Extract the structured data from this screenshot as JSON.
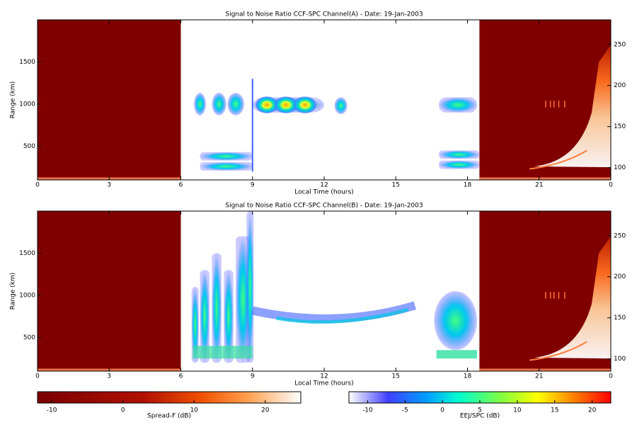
{
  "chart_data": [
    {
      "type": "heatmap",
      "title": "Signal to Noise Ratio CCF-SPC Channel(A) - Date: 19-Jan-2003",
      "xlabel": "Local Time (hours)",
      "ylabel": "Range (km)",
      "xlim": [
        0,
        24
      ],
      "xticks": [
        0,
        3,
        6,
        9,
        12,
        15,
        18,
        21,
        {
          "value": 24,
          "label": "0"
        }
      ],
      "ylim": [
        100,
        2000
      ],
      "yticks": [
        500,
        1000,
        1500
      ],
      "y2lim": [
        85,
        280
      ],
      "y2ticks": [
        100,
        150,
        200,
        250
      ]
    },
    {
      "type": "heatmap",
      "title": "Signal to Noise Ratio CCF-SPC Channel(B) - Date: 19-Jan-2003",
      "xlabel": "Local Time (hours)",
      "ylabel": "Range (km)",
      "xlim": [
        0,
        24
      ],
      "xticks": [
        0,
        3,
        6,
        9,
        12,
        15,
        18,
        21,
        {
          "value": 24,
          "label": "0"
        }
      ],
      "ylim": [
        100,
        2000
      ],
      "yticks": [
        500,
        1000,
        1500
      ],
      "y2lim": [
        85,
        280
      ],
      "y2ticks": [
        100,
        150,
        200,
        250
      ]
    }
  ],
  "colorbars": [
    {
      "label": "Spread-F (dB)",
      "lim": [
        -12,
        25
      ],
      "ticks": [
        -10,
        0,
        10,
        20
      ]
    },
    {
      "label": "EEJ/SPC (dB)",
      "lim": [
        -12.5,
        22.5
      ],
      "ticks": [
        -10,
        -5,
        0,
        5,
        10,
        15,
        20
      ]
    }
  ]
}
